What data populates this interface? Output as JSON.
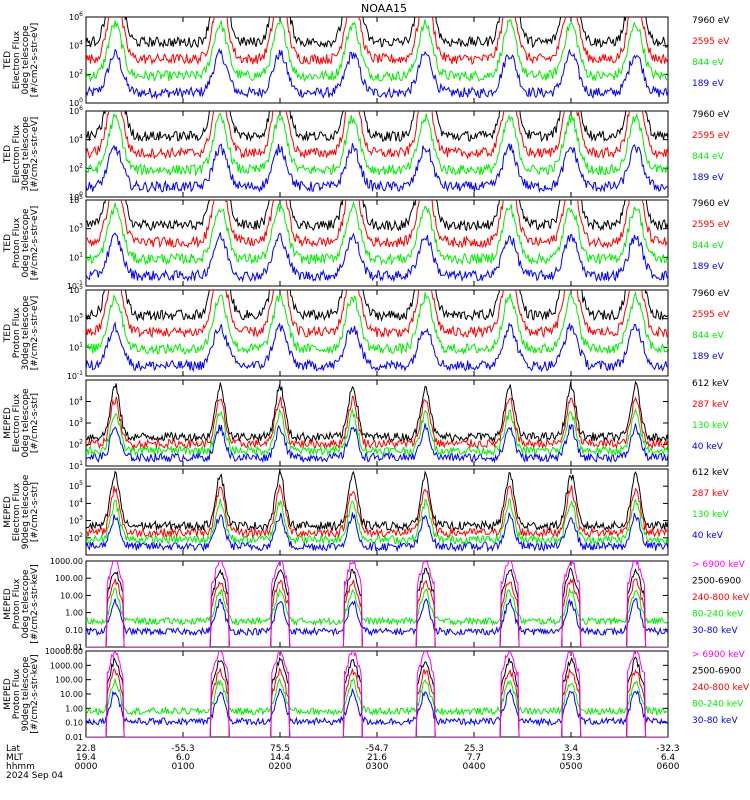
{
  "chart_data": {
    "type": "line",
    "title": "NOAA15",
    "date_label": "2024 Sep 04",
    "colors": {
      "black": "#000000",
      "red": "#ff0000",
      "green": "#00ee00",
      "blue": "#0000ff",
      "magenta": "#ff00ff"
    },
    "footer": {
      "row_labels": [
        "Lat",
        "MLT",
        "hhmm"
      ],
      "ticks": [
        {
          "t": 0,
          "lat": "22.8",
          "mlt": "19.4",
          "hhmm": "0000"
        },
        {
          "t": 60,
          "lat": "-55.3",
          "mlt": "6.0",
          "hhmm": "0100"
        },
        {
          "t": 120,
          "lat": "75.5",
          "mlt": "14.4",
          "hhmm": "0200"
        },
        {
          "t": 180,
          "lat": "-54.7",
          "mlt": "21.6",
          "hhmm": "0300"
        },
        {
          "t": 240,
          "lat": "25.3",
          "mlt": "7.7",
          "hhmm": "0400"
        },
        {
          "t": 300,
          "lat": "3.4",
          "mlt": "19.3",
          "hhmm": "0500"
        },
        {
          "t": 360,
          "lat": "-32.3",
          "mlt": "6.4",
          "hhmm": "0600"
        }
      ]
    },
    "x_range_minutes": [
      0,
      360
    ],
    "passes_minutes": [
      18,
      83,
      120,
      165,
      210,
      262,
      300,
      340
    ],
    "panels": [
      {
        "id": "ted-e-0",
        "ylabel": [
          "TED",
          "Electron Flux",
          "0deg telescope",
          "[#/cm2-s-str-eV]"
        ],
        "scale": "log",
        "ylim": [
          1,
          1000000
        ],
        "yticks": [
          {
            "v": 1,
            "t": "10^0"
          },
          {
            "v": 100,
            "t": "10^2"
          },
          {
            "v": 10000,
            "t": "10^4"
          },
          {
            "v": 1000000,
            "t": "10^6"
          }
        ],
        "legend": [
          {
            "label": "7960 eV",
            "color": "black"
          },
          {
            "label": "2595 eV",
            "color": "red"
          },
          {
            "label": "844 eV",
            "color": "green"
          },
          {
            "label": "189 eV",
            "color": "blue"
          }
        ]
      },
      {
        "id": "ted-e-30",
        "ylabel": [
          "TED",
          "Electron Flux",
          "30deg telescope",
          "[#/cm2-s-str-eV]"
        ],
        "scale": "log",
        "ylim": [
          1,
          1000000
        ],
        "yticks": [
          {
            "v": 1,
            "t": "10^0"
          },
          {
            "v": 100,
            "t": "10^2"
          },
          {
            "v": 10000,
            "t": "10^4"
          },
          {
            "v": 1000000,
            "t": "10^6"
          }
        ],
        "legend": [
          {
            "label": "7960 eV",
            "color": "black"
          },
          {
            "label": "2595 eV",
            "color": "red"
          },
          {
            "label": "844 eV",
            "color": "green"
          },
          {
            "label": "189 eV",
            "color": "blue"
          }
        ]
      },
      {
        "id": "ted-p-0",
        "ylabel": [
          "TED",
          "Proton Flux",
          "0deg telescope",
          "[#/cm2-s-str-eV]"
        ],
        "scale": "log",
        "ylim": [
          0.1,
          100000
        ],
        "yticks": [
          {
            "v": 0.1,
            "t": "10^-1"
          },
          {
            "v": 10,
            "t": "10^1"
          },
          {
            "v": 1000,
            "t": "10^3"
          },
          {
            "v": 100000,
            "t": "10^5"
          }
        ],
        "legend": [
          {
            "label": "7960 eV",
            "color": "black"
          },
          {
            "label": "2595 eV",
            "color": "red"
          },
          {
            "label": "844 eV",
            "color": "green"
          },
          {
            "label": "189 eV",
            "color": "blue"
          }
        ]
      },
      {
        "id": "ted-p-30",
        "ylabel": [
          "TED",
          "Proton Flux",
          "30deg telescope",
          "[#/cm2-s-str-eV]"
        ],
        "scale": "log",
        "ylim": [
          0.1,
          100000
        ],
        "yticks": [
          {
            "v": 0.1,
            "t": "10^-1"
          },
          {
            "v": 10,
            "t": "10^1"
          },
          {
            "v": 1000,
            "t": "10^3"
          },
          {
            "v": 100000,
            "t": "10^5"
          }
        ],
        "legend": [
          {
            "label": "7960 eV",
            "color": "black"
          },
          {
            "label": "2595 eV",
            "color": "red"
          },
          {
            "label": "844 eV",
            "color": "green"
          },
          {
            "label": "189 eV",
            "color": "blue"
          }
        ]
      },
      {
        "id": "meped-e-0",
        "ylabel": [
          "MEPED",
          "Electron Flux",
          "0deg telescope",
          "[#/cm2-s-str]"
        ],
        "scale": "log",
        "ylim": [
          10,
          100000
        ],
        "yticks": [
          {
            "v": 10,
            "t": "10^1"
          },
          {
            "v": 100,
            "t": "10^2"
          },
          {
            "v": 1000,
            "t": "10^3"
          },
          {
            "v": 10000,
            "t": "10^4"
          }
        ],
        "legend": [
          {
            "label": "612 keV",
            "color": "black"
          },
          {
            "label": "287 keV",
            "color": "red"
          },
          {
            "label": "130 keV",
            "color": "green"
          },
          {
            "label": "40 keV",
            "color": "blue"
          }
        ]
      },
      {
        "id": "meped-e-90",
        "ylabel": [
          "MEPED",
          "Electron Flux",
          "90deg telescope",
          "[#/cm2-s-str]"
        ],
        "scale": "log",
        "ylim": [
          10,
          1000000
        ],
        "yticks": [
          {
            "v": 100,
            "t": "10^2"
          },
          {
            "v": 1000,
            "t": "10^3"
          },
          {
            "v": 10000,
            "t": "10^4"
          },
          {
            "v": 100000,
            "t": "10^5"
          }
        ],
        "legend": [
          {
            "label": "612 keV",
            "color": "black"
          },
          {
            "label": "287 keV",
            "color": "red"
          },
          {
            "label": "130 keV",
            "color": "green"
          },
          {
            "label": "40 keV",
            "color": "blue"
          }
        ]
      },
      {
        "id": "meped-p-0",
        "ylabel": [
          "MEPED",
          "Proton Flux",
          "0deg telescope",
          "[#/cm2-s-str-keV]"
        ],
        "scale": "log",
        "ylim": [
          0.01,
          1000
        ],
        "yticks": [
          {
            "v": 0.01,
            "t": "0.01"
          },
          {
            "v": 0.1,
            "t": "0.10"
          },
          {
            "v": 1,
            "t": "1.00"
          },
          {
            "v": 10,
            "t": "10.00"
          },
          {
            "v": 100,
            "t": "100.00"
          },
          {
            "v": 1000,
            "t": "1000.00"
          }
        ],
        "legend": [
          {
            "label": "> 6900 keV",
            "color": "magenta"
          },
          {
            "label": "2500-6900",
            "color": "black"
          },
          {
            "label": "240-800 keV",
            "color": "red"
          },
          {
            "label": "80-240 keV",
            "color": "green"
          },
          {
            "label": "30-80 keV",
            "color": "blue"
          }
        ]
      },
      {
        "id": "meped-p-90",
        "ylabel": [
          "MEPED",
          "Proton Flux",
          "90deg telescope",
          "[#/cm2-s-str-keV]"
        ],
        "scale": "log",
        "ylim": [
          0.01,
          10000
        ],
        "yticks": [
          {
            "v": 0.01,
            "t": "0.01"
          },
          {
            "v": 0.1,
            "t": "0.10"
          },
          {
            "v": 1,
            "t": "1.00"
          },
          {
            "v": 10,
            "t": "10.00"
          },
          {
            "v": 100,
            "t": "100.00"
          },
          {
            "v": 1000,
            "t": "1000.00"
          },
          {
            "v": 10000,
            "t": "10000.00"
          }
        ],
        "legend": [
          {
            "label": "> 6900 keV",
            "color": "magenta"
          },
          {
            "label": "2500-6900",
            "color": "black"
          },
          {
            "label": "240-800 keV",
            "color": "red"
          },
          {
            "label": "80-240 keV",
            "color": "green"
          },
          {
            "label": "30-80 keV",
            "color": "blue"
          }
        ]
      }
    ]
  }
}
